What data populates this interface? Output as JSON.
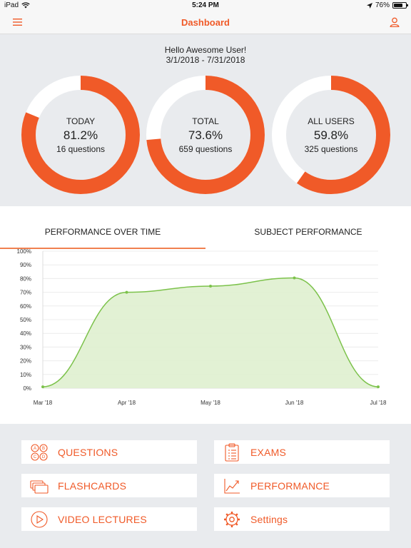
{
  "status_bar": {
    "device": "iPad",
    "time": "5:24 PM",
    "battery": "76%",
    "battery_level": 0.76
  },
  "nav": {
    "title": "Dashboard",
    "menu_icon": "hamburger-icon",
    "user_icon": "user-icon"
  },
  "colors": {
    "accent": "#f05a28",
    "ring_track": "#ffffff",
    "chart_line": "#7cc24b",
    "chart_fill": "#dff0cf"
  },
  "summary": {
    "greeting": "Hello Awesome User!",
    "date_range": "3/1/2018 - 7/31/2018",
    "rings": [
      {
        "label": "TODAY",
        "percent": "81.2%",
        "value": 81.2,
        "count": "16 questions"
      },
      {
        "label": "TOTAL",
        "percent": "73.6%",
        "value": 73.6,
        "count": "659 questions"
      },
      {
        "label": "ALL USERS",
        "percent": "59.8%",
        "value": 59.8,
        "count": "325 questions"
      }
    ]
  },
  "tabs": [
    {
      "label": "PERFORMANCE OVER TIME",
      "active": true
    },
    {
      "label": "SUBJECT PERFORMANCE",
      "active": false
    }
  ],
  "chart_data": {
    "type": "area",
    "x": [
      "Mar '18",
      "Apr '18",
      "May '18",
      "Jun '18",
      "Jul '18"
    ],
    "series": [
      {
        "values": [
          1,
          70,
          74.5,
          80.5,
          1
        ]
      }
    ],
    "ylim": [
      0,
      100
    ],
    "yticks": [
      "0%",
      "10%",
      "20%",
      "30%",
      "40%",
      "50%",
      "60%",
      "70%",
      "80%",
      "90%",
      "100%"
    ],
    "grid": true,
    "title": "",
    "xlabel": "",
    "ylabel": ""
  },
  "buttons": [
    {
      "label": "QUESTIONS",
      "icon": "abcd-choices-icon"
    },
    {
      "label": "EXAMS",
      "icon": "clipboard-list-icon"
    },
    {
      "label": "FLASHCARDS",
      "icon": "flashcards-icon"
    },
    {
      "label": "PERFORMANCE",
      "icon": "trend-chart-icon"
    },
    {
      "label": "VIDEO LECTURES",
      "icon": "play-circle-icon"
    },
    {
      "label": "Settings",
      "icon": "gear-icon"
    }
  ]
}
